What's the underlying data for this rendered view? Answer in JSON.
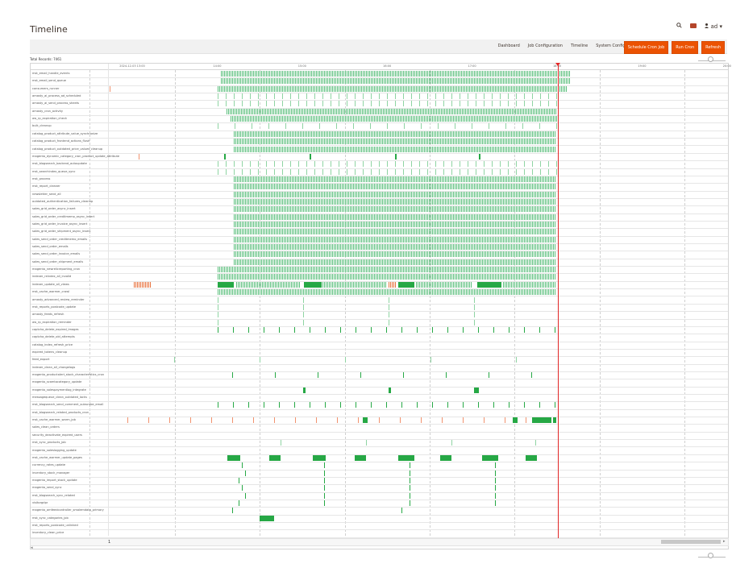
{
  "header": {
    "title": "Timeline",
    "search_icon": "search-icon",
    "notification_icon": "bell-icon",
    "user_label": "ad ▾"
  },
  "toolbar": {
    "links": [
      "Dashboard",
      "Job Configuration",
      "Timeline",
      "System Configurations"
    ],
    "buttons": [
      "Schedule Cron Job",
      "Run Cron",
      "Refresh"
    ]
  },
  "total_records": "Total Records: 7461",
  "timeline": {
    "ticks": [
      "2024-12-03 13:00",
      "14:00",
      "15:00",
      "16:00",
      "17:00",
      "18:00",
      "19:00",
      "20:00"
    ],
    "rows": [
      "mst_email_handle_events",
      "mst_email_send_queue",
      "consumers_runner",
      "amasty_ai_process_ad_scheduled",
      "amasty_ai_send_process_sheets",
      "amasty_cron_activity",
      "aw_rp_expiration_check",
      "bulk_cleanup",
      "catalog_product_attribute_value_synchronize",
      "catalog_product_frontend_actions_flush",
      "catalog_product_outdated_price_values_cleanup",
      "magento_dynamic_category_cron_product_update_attribute",
      "mst_blogsearch_backend_autoupdate",
      "mst_searchindex_queue_sync",
      "mst_process",
      "mst_report_cleaner",
      "newsletter_send_all",
      "outdated_authentication_failures_cleanup",
      "sales_grid_order_async_insert",
      "sales_grid_order_creditmemo_async_insert",
      "sales_grid_order_invoice_async_insert",
      "sales_grid_order_shipment_async_insert",
      "sales_send_order_creditmemo_emails",
      "sales_send_order_emails",
      "sales_send_order_invoice_emails",
      "sales_send_order_shipment_emails",
      "magento_newrelicreporting_cron",
      "indexer_reindex_all_invalid",
      "indexer_update_all_views",
      "mst_cache_warmer_crawl",
      "amasty_advanced_review_reminder",
      "mst_reports_postcode_update",
      "amasty_feeds_refresh",
      "aw_rp_expiration_reminder",
      "captcha_delete_expired_images",
      "captcha_delete_old_attempts",
      "catalog_index_refresh_price",
      "expired_tokens_cleanup",
      "feed_export",
      "indexer_clean_all_changelogs",
      "magento_productalert_stock_characteristics_cron",
      "magento_scamtocategory_update",
      "magento_salespaymentlog_integrate",
      "messagequeue_clean_outdated_locks",
      "mst_blogsearch_send_comment_subscribe_email",
      "mst_blogsearch_related_products_cron",
      "mst_cache_warmer_warm_job",
      "sales_clean_orders",
      "security_deactivate_expired_users",
      "mst_sync_products_job",
      "magento_saleslogging_update",
      "mst_cache_warmer_update_pages",
      "currency_rates_update",
      "inventory_stock_manager",
      "magento_import_stock_update",
      "magento_send_sync",
      "mst_blogsearch_sync_related",
      "visitorgdpr",
      "magento_amfeedcontroller_smalemdata_primary",
      "mst_sync_categories_job",
      "mst_reports_postcode_unlinked",
      "inventory_clean_price"
    ]
  },
  "pager": "1"
}
